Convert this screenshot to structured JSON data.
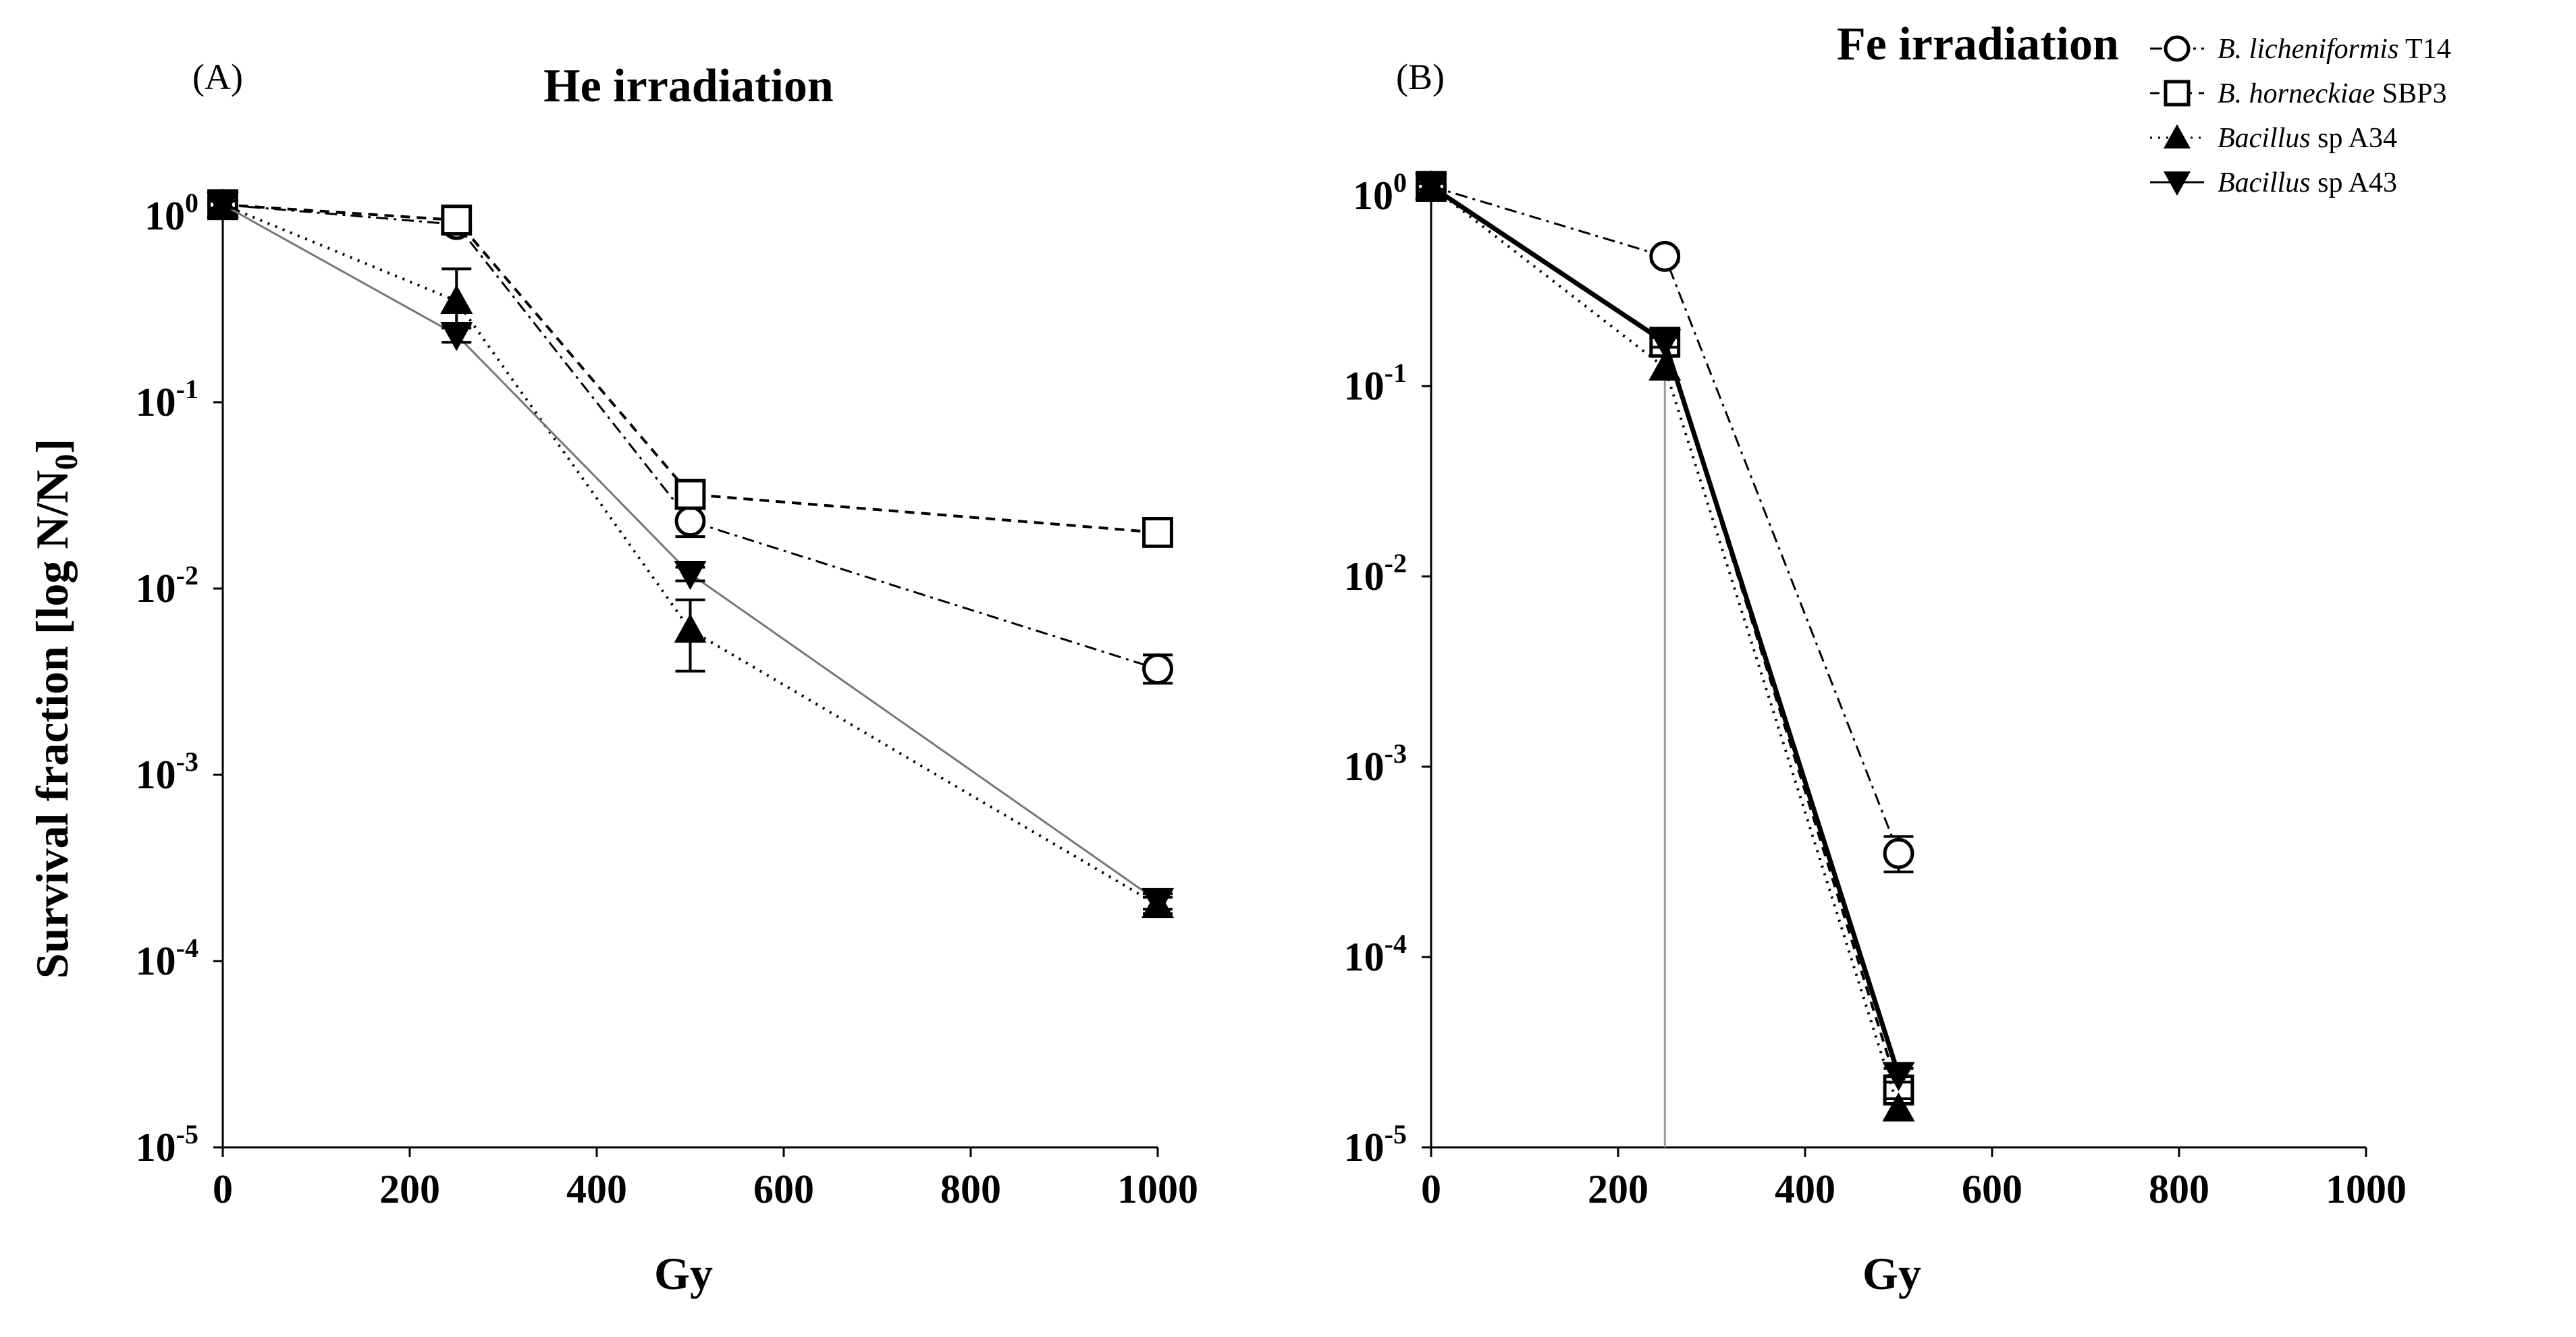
{
  "chart_data": [
    {
      "panel_label": "(A)",
      "type": "line",
      "title": "He irradiation",
      "xlabel": "Gy",
      "ylabel": "Survival fraction [log N/N0]",
      "ylabel_parts": {
        "main": "Survival fraction [log N/N",
        "sub": "0",
        "end": "]"
      },
      "xscale": "linear",
      "yscale": "log",
      "xlim": [
        0,
        1000
      ],
      "ylim": [
        1e-05,
        1
      ],
      "xticks": [
        0,
        200,
        400,
        600,
        800,
        1000
      ],
      "yticks": [
        {
          "value": 1,
          "base": "10",
          "exp": "0"
        },
        {
          "value": 0.1,
          "base": "10",
          "exp": "-1"
        },
        {
          "value": 0.01,
          "base": "10",
          "exp": "-2"
        },
        {
          "value": 0.001,
          "base": "10",
          "exp": "-3"
        },
        {
          "value": 0.0001,
          "base": "10",
          "exp": "-4"
        },
        {
          "value": 1e-05,
          "base": "10",
          "exp": "-5"
        }
      ],
      "series": [
        {
          "name": "B. licheniformis T14",
          "marker": "circle-open",
          "line": "dashdot",
          "x": [
            0,
            250,
            500,
            1000
          ],
          "y": [
            1.15,
            0.9,
            0.023,
            0.0037
          ],
          "err_low": [
            1.05,
            0.85,
            0.019,
            0.0031
          ],
          "err_high": [
            1.25,
            0.95,
            0.027,
            0.0044
          ]
        },
        {
          "name": "B. horneckiae SBP3",
          "marker": "square-open",
          "line": "dashed",
          "x": [
            0,
            250,
            500,
            1000
          ],
          "y": [
            1.15,
            0.95,
            0.032,
            0.02
          ],
          "err_low": [
            1.1,
            0.9,
            0.03,
            0.019
          ],
          "err_high": [
            1.2,
            1.0,
            0.034,
            0.021
          ]
        },
        {
          "name": "Bacillus sp A34",
          "marker": "triangle-up",
          "line": "dotted",
          "x": [
            0,
            250,
            500,
            1000
          ],
          "y": [
            1.15,
            0.35,
            0.006,
            0.0002
          ],
          "err_low": [
            1.1,
            0.26,
            0.0036,
            0.00018
          ],
          "err_high": [
            1.2,
            0.52,
            0.0087,
            0.00022
          ]
        },
        {
          "name": "Bacillus sp A43",
          "marker": "triangle-down",
          "line": "solid-gray",
          "x": [
            0,
            250,
            500,
            1000
          ],
          "y": [
            1.15,
            0.23,
            0.012,
            0.00021
          ],
          "err_low": [
            1.1,
            0.21,
            0.011,
            0.00019
          ],
          "err_high": [
            1.2,
            0.25,
            0.013,
            0.00023
          ]
        }
      ]
    },
    {
      "panel_label": "(B)",
      "type": "line",
      "title": "Fe irradiation",
      "xlabel": "Gy",
      "ylabel": "",
      "xscale": "linear",
      "yscale": "log",
      "xlim": [
        0,
        1000
      ],
      "ylim": [
        1e-05,
        1
      ],
      "xticks": [
        0,
        200,
        400,
        600,
        800,
        1000
      ],
      "yticks": [
        {
          "value": 1,
          "base": "10",
          "exp": "0"
        },
        {
          "value": 0.1,
          "base": "10",
          "exp": "-1"
        },
        {
          "value": 0.01,
          "base": "10",
          "exp": "-2"
        },
        {
          "value": 0.001,
          "base": "10",
          "exp": "-3"
        },
        {
          "value": 0.0001,
          "base": "10",
          "exp": "-4"
        },
        {
          "value": 1e-05,
          "base": "10",
          "exp": "-5"
        }
      ],
      "series": [
        {
          "name": "B. licheniformis T14",
          "marker": "circle-open",
          "line": "dashdot",
          "x": [
            0,
            250,
            500
          ],
          "y": [
            1.12,
            0.48,
            0.00035
          ],
          "err_low": [
            1.08,
            0.45,
            0.00028
          ],
          "err_high": [
            1.16,
            0.51,
            0.00043
          ]
        },
        {
          "name": "B. horneckiae SBP3",
          "marker": "square-open",
          "line": "dashed",
          "x": [
            0,
            250,
            500
          ],
          "y": [
            1.12,
            0.17,
            2e-05
          ],
          "err_low": [
            1.08,
            0.15,
            1.8e-05
          ],
          "err_high": [
            1.16,
            0.19,
            2.2e-05
          ]
        },
        {
          "name": "Bacillus sp A34",
          "marker": "triangle-up",
          "line": "dotted",
          "x": [
            0,
            250,
            500
          ],
          "y": [
            1.12,
            0.125,
            1.6e-05
          ],
          "err_low": [
            1.08,
            1e-05,
            1.4e-05
          ],
          "err_high": [
            1.16,
            0.14,
            1.8e-05
          ]
        },
        {
          "name": "Bacillus sp A43",
          "marker": "triangle-down",
          "line": "solid-black",
          "x": [
            0,
            250,
            500
          ],
          "y": [
            1.12,
            0.17,
            2.4e-05
          ],
          "err_low": [
            1.08,
            0.16,
            2.2e-05
          ],
          "err_high": [
            1.16,
            0.18,
            2.6e-05
          ]
        }
      ]
    }
  ],
  "legend": {
    "placement": "top-right",
    "items": [
      {
        "italic": "B. licheniformis",
        "rest": " T14",
        "marker": "circle-open",
        "line": "dashdot"
      },
      {
        "italic": "B. horneckiae",
        "rest": " SBP3",
        "marker": "square-open",
        "line": "dashed"
      },
      {
        "italic": "Bacillus",
        "rest": " sp A34",
        "marker": "triangle-up",
        "line": "dotted"
      },
      {
        "italic": "Bacillus",
        "rest": " sp A43",
        "marker": "triangle-down",
        "line": "solid"
      }
    ]
  }
}
